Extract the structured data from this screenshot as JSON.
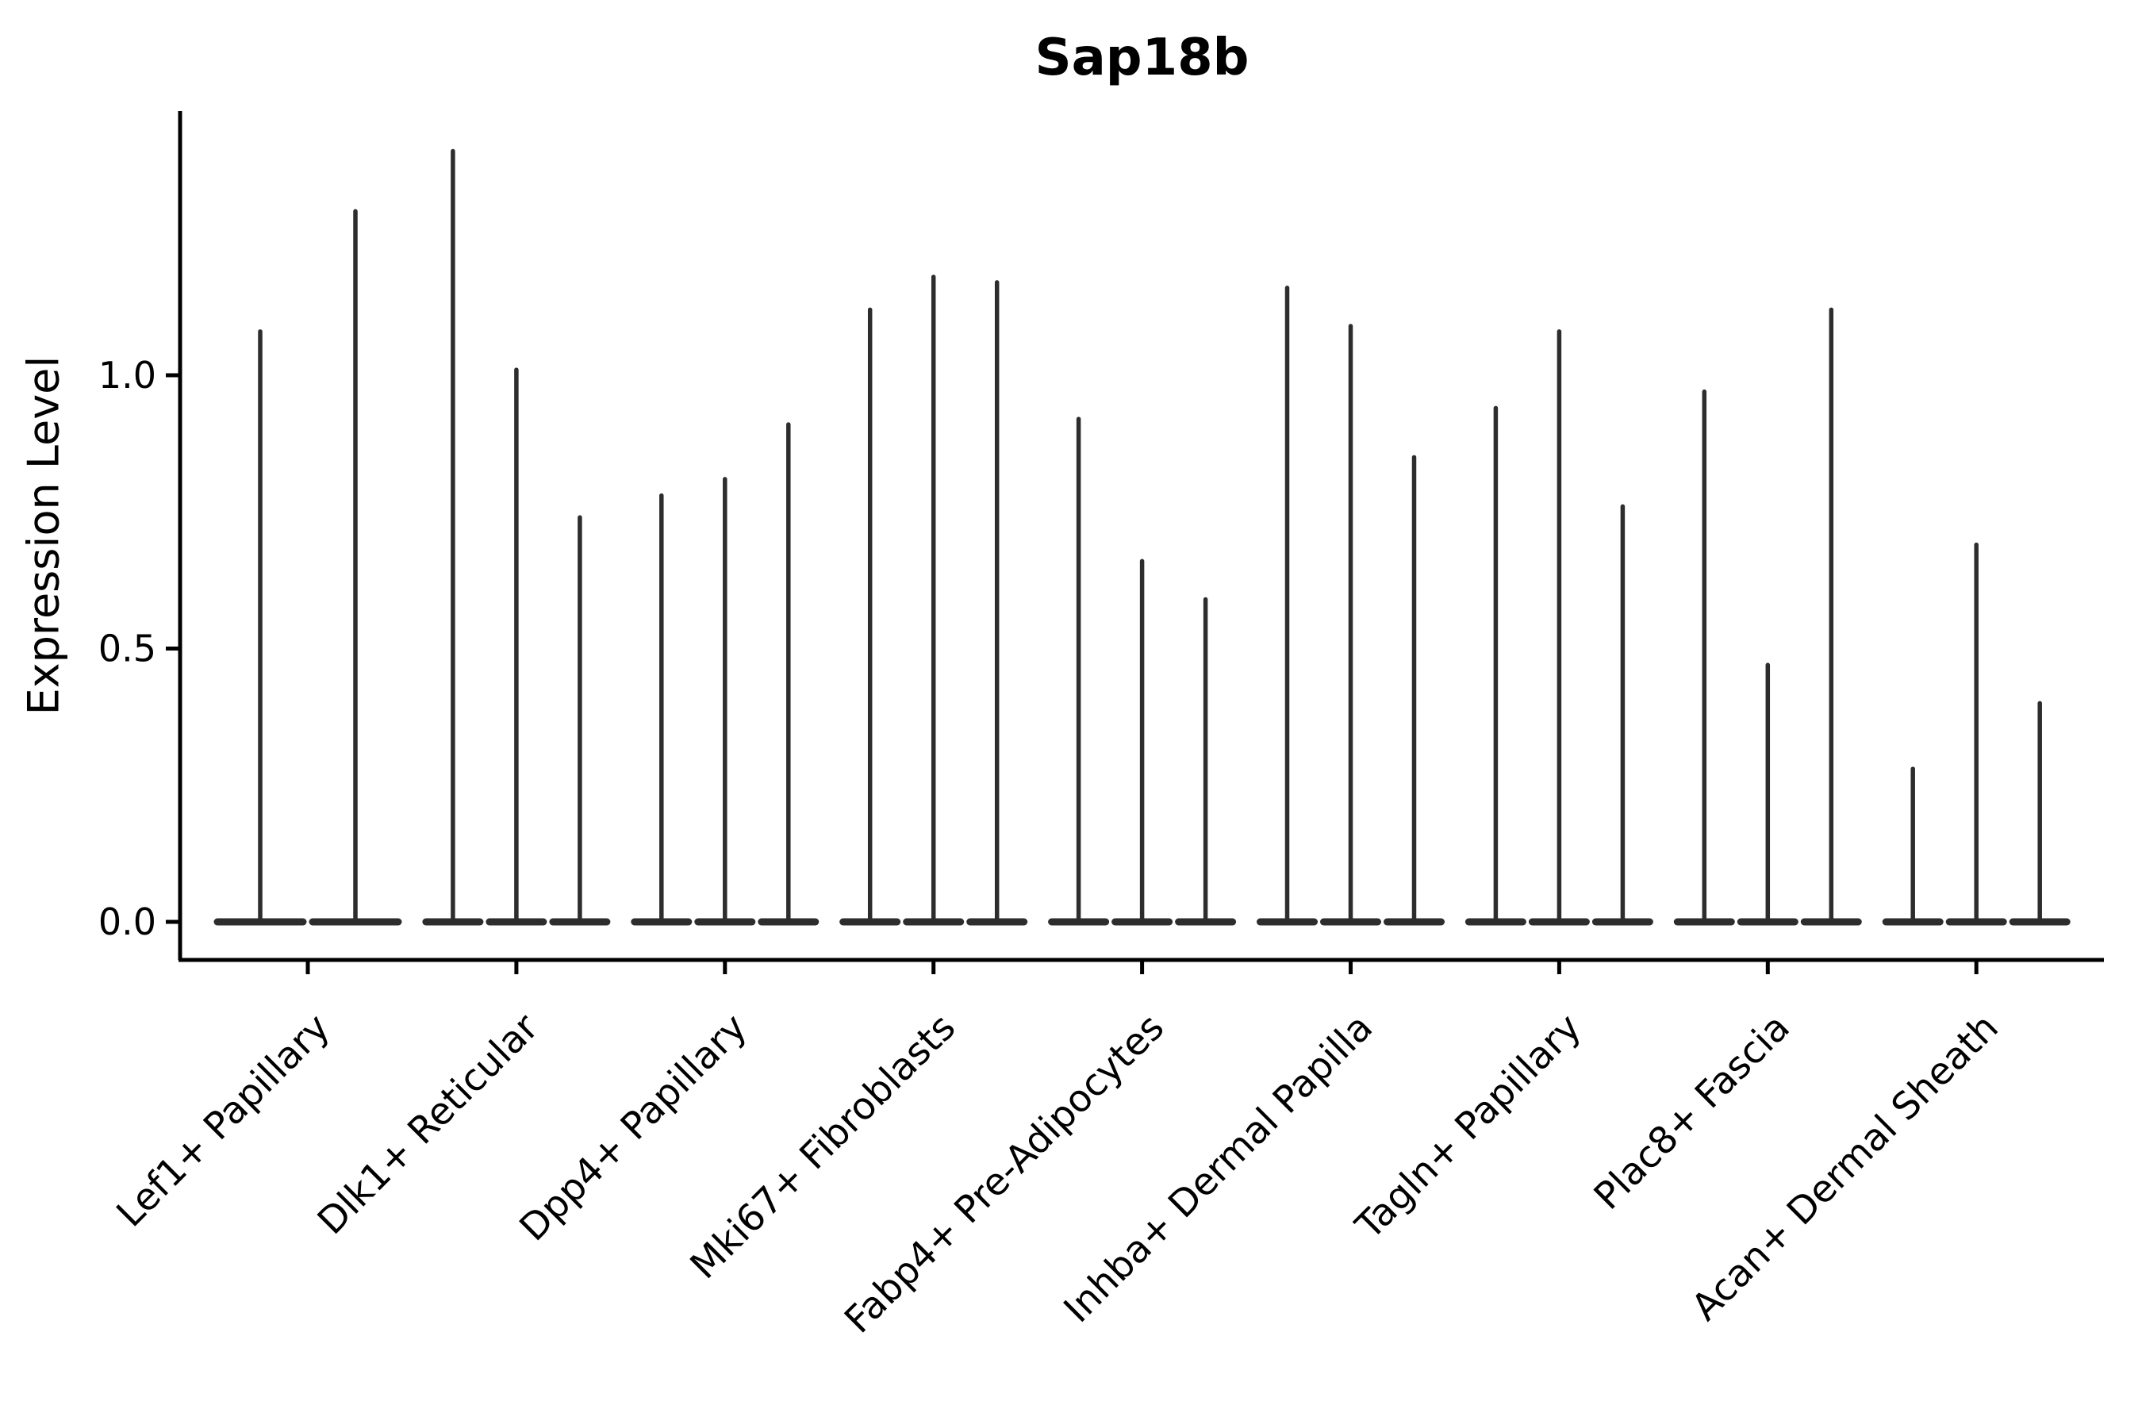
{
  "chart_data": {
    "type": "violin",
    "title": "Sap18b",
    "ylabel": "Expression Level",
    "xlabel": "",
    "ytick_labels": [
      "0.0",
      "0.5",
      "1.0"
    ],
    "ytick_values": [
      0.0,
      0.5,
      1.0
    ],
    "ylim": [
      -0.07,
      1.48
    ],
    "grid": false,
    "legend_position": "none",
    "violin_color": "#2d2d2d",
    "axis_color": "#000000",
    "text_color": "#000000",
    "categories": [
      "Lef1+ Papillary",
      "Dlk1+ Reticular",
      "Dpp4+ Papillary",
      "Mki67+ Fibroblasts",
      "Fabp4+ Pre-Adipocytes",
      "Inhba+ Dermal Papilla",
      "Tagln+ Papillary",
      "Plac8+ Fascia",
      "Acan+ Dermal Sheath"
    ],
    "groups": [
      {
        "category": "Lef1+ Papillary",
        "violin_max_expression": [
          1.08,
          1.3
        ]
      },
      {
        "category": "Dlk1+ Reticular",
        "violin_max_expression": [
          1.41,
          1.01,
          0.74
        ]
      },
      {
        "category": "Dpp4+ Papillary",
        "violin_max_expression": [
          0.78,
          0.81,
          0.91
        ]
      },
      {
        "category": "Mki67+ Fibroblasts",
        "violin_max_expression": [
          1.12,
          1.18,
          1.17
        ]
      },
      {
        "category": "Fabp4+ Pre-Adipocytes",
        "violin_max_expression": [
          0.92,
          0.66,
          0.59
        ]
      },
      {
        "category": "Inhba+ Dermal Papilla",
        "violin_max_expression": [
          1.16,
          1.09,
          0.85
        ]
      },
      {
        "category": "Tagln+ Papillary",
        "violin_max_expression": [
          0.94,
          1.08,
          0.76
        ]
      },
      {
        "category": "Plac8+ Fascia",
        "violin_max_expression": [
          0.97,
          0.47,
          1.12
        ]
      },
      {
        "category": "Acan+ Dermal Sheath",
        "violin_max_expression": [
          0.28,
          0.69,
          0.4
        ]
      }
    ],
    "violin_shape_note": "each violin is a flat wide density base at 0 with a thin spike up to its max value"
  }
}
